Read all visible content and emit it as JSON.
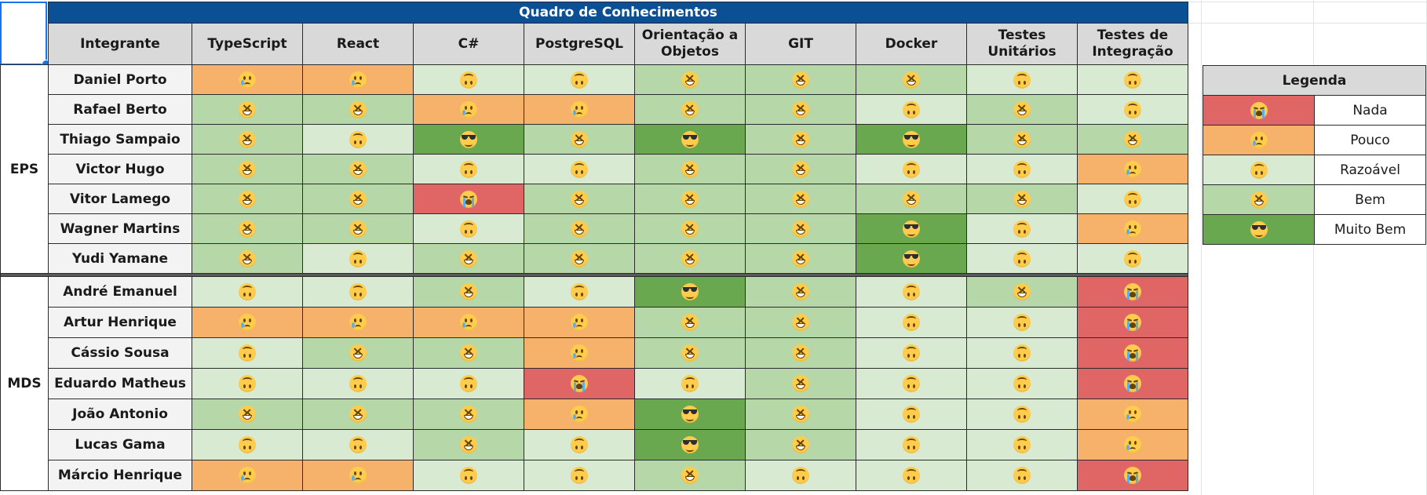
{
  "title": "Quadro de Conhecimentos",
  "headers": {
    "member": "Integrante",
    "skills": [
      [
        "TypeScript"
      ],
      [
        "React"
      ],
      [
        "C#"
      ],
      [
        "PostgreSQL"
      ],
      [
        "Orientação a",
        "Objetos"
      ],
      [
        "GIT"
      ],
      [
        "Docker"
      ],
      [
        "Testes",
        "Unitários"
      ],
      [
        "Testes de",
        "Integração"
      ]
    ]
  },
  "groups": [
    {
      "name": "EPS",
      "members": [
        {
          "name": "Daniel Porto",
          "levels": [
            1,
            1,
            2,
            2,
            3,
            3,
            3,
            2,
            2
          ]
        },
        {
          "name": "Rafael Berto",
          "levels": [
            3,
            3,
            1,
            1,
            3,
            3,
            2,
            3,
            2
          ]
        },
        {
          "name": "Thiago Sampaio",
          "levels": [
            3,
            2,
            4,
            3,
            4,
            3,
            4,
            3,
            3
          ]
        },
        {
          "name": "Victor Hugo",
          "levels": [
            3,
            3,
            2,
            2,
            3,
            3,
            2,
            2,
            1
          ]
        },
        {
          "name": "Vitor Lamego",
          "levels": [
            3,
            3,
            0,
            3,
            3,
            3,
            3,
            3,
            2
          ]
        },
        {
          "name": "Wagner Martins",
          "levels": [
            3,
            3,
            2,
            3,
            3,
            3,
            4,
            2,
            1
          ]
        },
        {
          "name": "Yudi Yamane",
          "levels": [
            3,
            2,
            3,
            3,
            3,
            3,
            4,
            2,
            2
          ]
        }
      ]
    },
    {
      "name": "MDS",
      "members": [
        {
          "name": "André Emanuel",
          "levels": [
            2,
            2,
            3,
            2,
            4,
            3,
            2,
            3,
            0
          ]
        },
        {
          "name": "Artur Henrique",
          "levels": [
            1,
            1,
            1,
            1,
            3,
            3,
            2,
            2,
            0
          ]
        },
        {
          "name": "Cássio Sousa",
          "levels": [
            2,
            3,
            3,
            1,
            3,
            3,
            2,
            2,
            0
          ]
        },
        {
          "name": "Eduardo Matheus",
          "levels": [
            2,
            2,
            2,
            0,
            2,
            3,
            2,
            2,
            0
          ]
        },
        {
          "name": "João Antonio",
          "levels": [
            3,
            3,
            3,
            1,
            4,
            3,
            2,
            2,
            1
          ]
        },
        {
          "name": "Lucas Gama",
          "levels": [
            2,
            2,
            3,
            2,
            4,
            3,
            2,
            2,
            1
          ]
        },
        {
          "name": "Márcio Henrique",
          "levels": [
            1,
            1,
            2,
            2,
            3,
            2,
            2,
            2,
            0
          ]
        }
      ]
    }
  ],
  "legend": {
    "title": "Legenda",
    "items": [
      {
        "label": "Nada",
        "color": "#e06666",
        "icon": "loudly-crying-face-icon"
      },
      {
        "label": "Pouco",
        "color": "#f6b26b",
        "icon": "crying-face-icon"
      },
      {
        "label": "Razoável",
        "color": "#d9ead3",
        "icon": "upside-down-face-icon"
      },
      {
        "label": "Bem",
        "color": "#b6d7a8",
        "icon": "grinning-squinting-face-icon"
      },
      {
        "label": "Muito Bem",
        "color": "#6aa84f",
        "icon": "smiling-face-with-sunglasses-icon"
      }
    ]
  }
}
